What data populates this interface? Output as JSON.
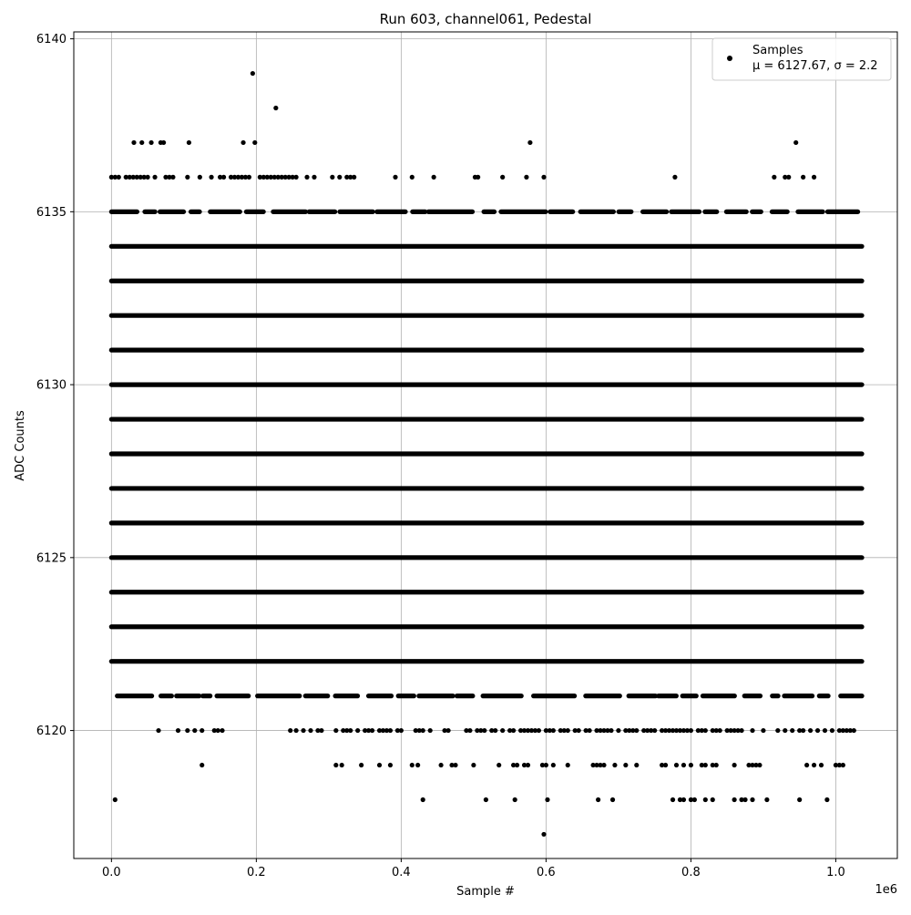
{
  "chart_data": {
    "type": "scatter",
    "title": "Run 603, channel061, Pedestal",
    "xlabel": "Sample #",
    "ylabel": "ADC Counts",
    "x_offset_label": "1e6",
    "xlim": [
      -0.052,
      1.085
    ],
    "ylim": [
      6116.3,
      6140.2
    ],
    "x_unit_multiplier": 1000000,
    "xticks": [
      0.0,
      0.2,
      0.4,
      0.6,
      0.8,
      1.0
    ],
    "xtick_labels": [
      "0.0",
      "0.2",
      "0.4",
      "0.6",
      "0.8",
      "1.0"
    ],
    "yticks": [
      6120,
      6125,
      6130,
      6135,
      6140
    ],
    "ytick_labels": [
      "6120",
      "6125",
      "6130",
      "6135",
      "6140"
    ],
    "grid": true,
    "legend_position": "top-right",
    "marker_color": "#000000",
    "series": [
      {
        "name": "Samples",
        "stats_label": "μ = 6127.67, σ = 2.2",
        "x_range": [
          0.0,
          1.036
        ],
        "dense_levels": [
          6122,
          6123,
          6124,
          6125,
          6126,
          6127,
          6128,
          6129,
          6130,
          6131,
          6132,
          6133,
          6134
        ],
        "partial_levels": [
          {
            "y": 6135,
            "start": 0.0,
            "end": 1.036,
            "density": 0.75
          },
          {
            "y": 6121,
            "start": 0.008,
            "end": 1.036,
            "density": 0.7
          }
        ],
        "sparse_points": [
          [
            0.195,
            6139
          ],
          [
            0.227,
            6138
          ],
          [
            0.031,
            6137
          ],
          [
            0.042,
            6137
          ],
          [
            0.055,
            6137
          ],
          [
            0.068,
            6137
          ],
          [
            0.072,
            6137
          ],
          [
            0.107,
            6137
          ],
          [
            0.182,
            6137
          ],
          [
            0.198,
            6137
          ],
          [
            0.578,
            6137
          ],
          [
            0.945,
            6137
          ],
          [
            0.0,
            6136
          ],
          [
            0.005,
            6136
          ],
          [
            0.01,
            6136
          ],
          [
            0.02,
            6136
          ],
          [
            0.025,
            6136
          ],
          [
            0.03,
            6136
          ],
          [
            0.035,
            6136
          ],
          [
            0.04,
            6136
          ],
          [
            0.045,
            6136
          ],
          [
            0.05,
            6136
          ],
          [
            0.06,
            6136
          ],
          [
            0.075,
            6136
          ],
          [
            0.08,
            6136
          ],
          [
            0.085,
            6136
          ],
          [
            0.105,
            6136
          ],
          [
            0.122,
            6136
          ],
          [
            0.138,
            6136
          ],
          [
            0.15,
            6136
          ],
          [
            0.155,
            6136
          ],
          [
            0.165,
            6136
          ],
          [
            0.17,
            6136
          ],
          [
            0.175,
            6136
          ],
          [
            0.18,
            6136
          ],
          [
            0.185,
            6136
          ],
          [
            0.19,
            6136
          ],
          [
            0.205,
            6136
          ],
          [
            0.21,
            6136
          ],
          [
            0.215,
            6136
          ],
          [
            0.22,
            6136
          ],
          [
            0.225,
            6136
          ],
          [
            0.23,
            6136
          ],
          [
            0.235,
            6136
          ],
          [
            0.24,
            6136
          ],
          [
            0.245,
            6136
          ],
          [
            0.25,
            6136
          ],
          [
            0.255,
            6136
          ],
          [
            0.27,
            6136
          ],
          [
            0.28,
            6136
          ],
          [
            0.305,
            6136
          ],
          [
            0.315,
            6136
          ],
          [
            0.325,
            6136
          ],
          [
            0.33,
            6136
          ],
          [
            0.335,
            6136
          ],
          [
            0.392,
            6136
          ],
          [
            0.415,
            6136
          ],
          [
            0.445,
            6136
          ],
          [
            0.502,
            6136
          ],
          [
            0.506,
            6136
          ],
          [
            0.54,
            6136
          ],
          [
            0.573,
            6136
          ],
          [
            0.597,
            6136
          ],
          [
            0.778,
            6136
          ],
          [
            0.915,
            6136
          ],
          [
            0.93,
            6136
          ],
          [
            0.935,
            6136
          ],
          [
            0.955,
            6136
          ],
          [
            0.97,
            6136
          ],
          [
            0.065,
            6120
          ],
          [
            0.092,
            6120
          ],
          [
            0.105,
            6120
          ],
          [
            0.115,
            6120
          ],
          [
            0.125,
            6120
          ],
          [
            0.142,
            6120
          ],
          [
            0.147,
            6120
          ],
          [
            0.153,
            6120
          ],
          [
            0.247,
            6120
          ],
          [
            0.255,
            6120
          ],
          [
            0.265,
            6120
          ],
          [
            0.275,
            6120
          ],
          [
            0.285,
            6120
          ],
          [
            0.29,
            6120
          ],
          [
            0.31,
            6120
          ],
          [
            0.32,
            6120
          ],
          [
            0.325,
            6120
          ],
          [
            0.33,
            6120
          ],
          [
            0.34,
            6120
          ],
          [
            0.35,
            6120
          ],
          [
            0.355,
            6120
          ],
          [
            0.36,
            6120
          ],
          [
            0.37,
            6120
          ],
          [
            0.375,
            6120
          ],
          [
            0.38,
            6120
          ],
          [
            0.385,
            6120
          ],
          [
            0.395,
            6120
          ],
          [
            0.4,
            6120
          ],
          [
            0.42,
            6120
          ],
          [
            0.425,
            6120
          ],
          [
            0.43,
            6120
          ],
          [
            0.44,
            6120
          ],
          [
            0.46,
            6120
          ],
          [
            0.465,
            6120
          ],
          [
            0.49,
            6120
          ],
          [
            0.495,
            6120
          ],
          [
            0.505,
            6120
          ],
          [
            0.51,
            6120
          ],
          [
            0.515,
            6120
          ],
          [
            0.525,
            6120
          ],
          [
            0.53,
            6120
          ],
          [
            0.54,
            6120
          ],
          [
            0.55,
            6120
          ],
          [
            0.555,
            6120
          ],
          [
            0.565,
            6120
          ],
          [
            0.57,
            6120
          ],
          [
            0.575,
            6120
          ],
          [
            0.58,
            6120
          ],
          [
            0.585,
            6120
          ],
          [
            0.59,
            6120
          ],
          [
            0.6,
            6120
          ],
          [
            0.605,
            6120
          ],
          [
            0.61,
            6120
          ],
          [
            0.62,
            6120
          ],
          [
            0.625,
            6120
          ],
          [
            0.63,
            6120
          ],
          [
            0.64,
            6120
          ],
          [
            0.645,
            6120
          ],
          [
            0.655,
            6120
          ],
          [
            0.66,
            6120
          ],
          [
            0.67,
            6120
          ],
          [
            0.675,
            6120
          ],
          [
            0.68,
            6120
          ],
          [
            0.685,
            6120
          ],
          [
            0.69,
            6120
          ],
          [
            0.7,
            6120
          ],
          [
            0.71,
            6120
          ],
          [
            0.715,
            6120
          ],
          [
            0.72,
            6120
          ],
          [
            0.725,
            6120
          ],
          [
            0.735,
            6120
          ],
          [
            0.74,
            6120
          ],
          [
            0.745,
            6120
          ],
          [
            0.75,
            6120
          ],
          [
            0.76,
            6120
          ],
          [
            0.765,
            6120
          ],
          [
            0.77,
            6120
          ],
          [
            0.775,
            6120
          ],
          [
            0.78,
            6120
          ],
          [
            0.785,
            6120
          ],
          [
            0.79,
            6120
          ],
          [
            0.795,
            6120
          ],
          [
            0.8,
            6120
          ],
          [
            0.81,
            6120
          ],
          [
            0.815,
            6120
          ],
          [
            0.82,
            6120
          ],
          [
            0.83,
            6120
          ],
          [
            0.835,
            6120
          ],
          [
            0.84,
            6120
          ],
          [
            0.85,
            6120
          ],
          [
            0.855,
            6120
          ],
          [
            0.86,
            6120
          ],
          [
            0.865,
            6120
          ],
          [
            0.87,
            6120
          ],
          [
            0.885,
            6120
          ],
          [
            0.9,
            6120
          ],
          [
            0.92,
            6120
          ],
          [
            0.93,
            6120
          ],
          [
            0.94,
            6120
          ],
          [
            0.95,
            6120
          ],
          [
            0.955,
            6120
          ],
          [
            0.965,
            6120
          ],
          [
            0.975,
            6120
          ],
          [
            0.985,
            6120
          ],
          [
            0.995,
            6120
          ],
          [
            1.005,
            6120
          ],
          [
            1.01,
            6120
          ],
          [
            1.015,
            6120
          ],
          [
            1.02,
            6120
          ],
          [
            1.025,
            6120
          ],
          [
            0.125,
            6119
          ],
          [
            0.31,
            6119
          ],
          [
            0.318,
            6119
          ],
          [
            0.345,
            6119
          ],
          [
            0.37,
            6119
          ],
          [
            0.385,
            6119
          ],
          [
            0.415,
            6119
          ],
          [
            0.423,
            6119
          ],
          [
            0.455,
            6119
          ],
          [
            0.47,
            6119
          ],
          [
            0.475,
            6119
          ],
          [
            0.5,
            6119
          ],
          [
            0.535,
            6119
          ],
          [
            0.555,
            6119
          ],
          [
            0.56,
            6119
          ],
          [
            0.57,
            6119
          ],
          [
            0.575,
            6119
          ],
          [
            0.595,
            6119
          ],
          [
            0.6,
            6119
          ],
          [
            0.61,
            6119
          ],
          [
            0.63,
            6119
          ],
          [
            0.665,
            6119
          ],
          [
            0.67,
            6119
          ],
          [
            0.675,
            6119
          ],
          [
            0.68,
            6119
          ],
          [
            0.695,
            6119
          ],
          [
            0.71,
            6119
          ],
          [
            0.725,
            6119
          ],
          [
            0.76,
            6119
          ],
          [
            0.765,
            6119
          ],
          [
            0.78,
            6119
          ],
          [
            0.79,
            6119
          ],
          [
            0.8,
            6119
          ],
          [
            0.815,
            6119
          ],
          [
            0.82,
            6119
          ],
          [
            0.83,
            6119
          ],
          [
            0.835,
            6119
          ],
          [
            0.86,
            6119
          ],
          [
            0.88,
            6119
          ],
          [
            0.885,
            6119
          ],
          [
            0.89,
            6119
          ],
          [
            0.895,
            6119
          ],
          [
            0.96,
            6119
          ],
          [
            0.97,
            6119
          ],
          [
            0.98,
            6119
          ],
          [
            1.0,
            6119
          ],
          [
            1.005,
            6119
          ],
          [
            1.01,
            6119
          ],
          [
            0.005,
            6118
          ],
          [
            0.43,
            6118
          ],
          [
            0.517,
            6118
          ],
          [
            0.557,
            6118
          ],
          [
            0.602,
            6118
          ],
          [
            0.672,
            6118
          ],
          [
            0.692,
            6118
          ],
          [
            0.775,
            6118
          ],
          [
            0.785,
            6118
          ],
          [
            0.79,
            6118
          ],
          [
            0.8,
            6118
          ],
          [
            0.805,
            6118
          ],
          [
            0.82,
            6118
          ],
          [
            0.83,
            6118
          ],
          [
            0.86,
            6118
          ],
          [
            0.87,
            6118
          ],
          [
            0.875,
            6118
          ],
          [
            0.885,
            6118
          ],
          [
            0.905,
            6118
          ],
          [
            0.95,
            6118
          ],
          [
            0.988,
            6118
          ],
          [
            0.597,
            6117
          ]
        ]
      }
    ]
  }
}
